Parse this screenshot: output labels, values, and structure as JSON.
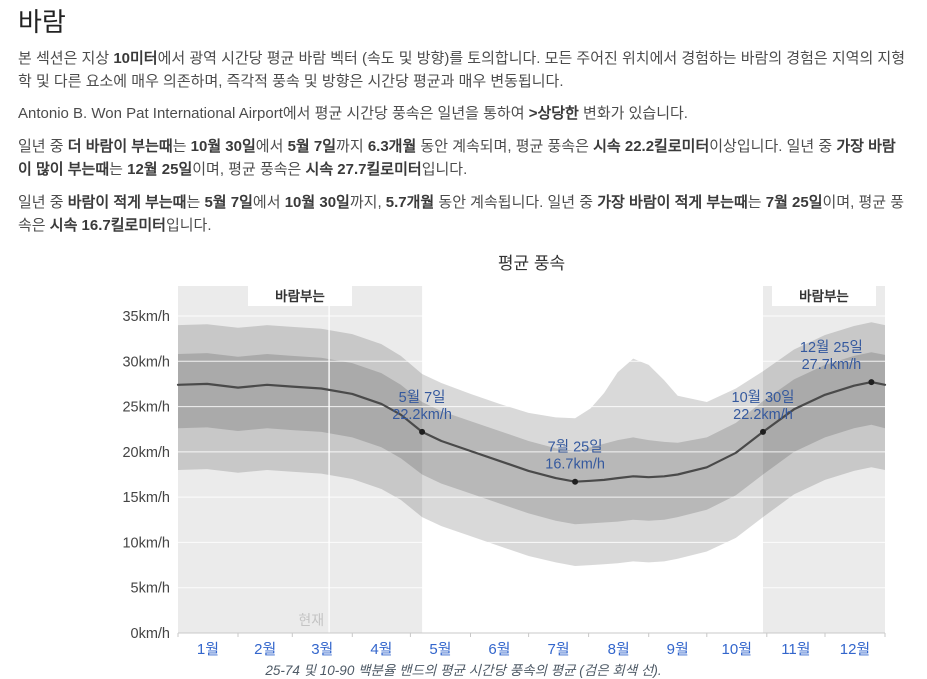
{
  "page": {
    "title": "바람",
    "paragraphs": [
      {
        "segments": [
          {
            "t": "본 섹션은 지상 ",
            "b": false
          },
          {
            "t": "10미터",
            "b": true
          },
          {
            "t": "에서 광역 시간당 평균 바람 벡터 (속도 및 방향)를 토의합니다. 모든 주어진 위치에서 경험하는 바람의 경험은 지역의 지형학 및 다른 요소에 매우 의존하며, 즉각적 풍속 및 방향은 시간당 평균과 매우 변동됩니다.",
            "b": false
          }
        ]
      },
      {
        "segments": [
          {
            "t": "Antonio B. Won Pat International Airport에서 평균 시간당 풍속은 일년을 통하여 ",
            "b": false
          },
          {
            "t": ">상당한",
            "b": true
          },
          {
            "t": " 변화가 있습니다.",
            "b": false
          }
        ]
      },
      {
        "segments": [
          {
            "t": "일년 중 ",
            "b": false
          },
          {
            "t": "더 바람이 부는때",
            "b": true
          },
          {
            "t": "는 ",
            "b": false
          },
          {
            "t": "10월 30일",
            "b": true
          },
          {
            "t": "에서 ",
            "b": false
          },
          {
            "t": "5월 7일",
            "b": true
          },
          {
            "t": "까지 ",
            "b": false
          },
          {
            "t": "6.3개월",
            "b": true
          },
          {
            "t": " 동안 계속되며, 평균 풍속은 ",
            "b": false
          },
          {
            "t": "시속 22.2킬로미터",
            "b": true
          },
          {
            "t": "이상입니다. 일년 중 ",
            "b": false
          },
          {
            "t": "가장 바람이 많이 부는때",
            "b": true
          },
          {
            "t": "는 ",
            "b": false
          },
          {
            "t": "12월 25일",
            "b": true
          },
          {
            "t": "이며, 평균 풍속은 ",
            "b": false
          },
          {
            "t": "시속 27.7킬로미터",
            "b": true
          },
          {
            "t": "입니다.",
            "b": false
          }
        ]
      },
      {
        "segments": [
          {
            "t": "일년 중 ",
            "b": false
          },
          {
            "t": "바람이 적게 부는때",
            "b": true
          },
          {
            "t": "는 ",
            "b": false
          },
          {
            "t": "5월 7일",
            "b": true
          },
          {
            "t": "에서 ",
            "b": false
          },
          {
            "t": "10월 30일",
            "b": true
          },
          {
            "t": "까지, ",
            "b": false
          },
          {
            "t": "5.7개월",
            "b": true
          },
          {
            "t": " 동안 계속됩니다. 일년 중 ",
            "b": false
          },
          {
            "t": "가장 바람이 적게 부는때",
            "b": true
          },
          {
            "t": "는 ",
            "b": false
          },
          {
            "t": "7월 25일",
            "b": true
          },
          {
            "t": "이며, 평균 풍속은 ",
            "b": false
          },
          {
            "t": "시속 16.7킬로미터",
            "b": true
          },
          {
            "t": "입니다.",
            "b": false
          }
        ]
      }
    ]
  },
  "chart_data": {
    "type": "line",
    "title": "평균 풍속",
    "caption": "25-74 및 10-90 백분율 밴드의 평균 시간당 풍속의 평균 (검은 회색 선).",
    "ylabel": "km/h",
    "ylim": [
      0,
      35
    ],
    "yticks": [
      0,
      5,
      10,
      15,
      20,
      25,
      30,
      35
    ],
    "ytick_labels": [
      "0km/h",
      "5km/h",
      "10km/h",
      "15km/h",
      "20km/h",
      "25km/h",
      "30km/h",
      "35km/h"
    ],
    "x_months": [
      "1월",
      "2월",
      "3월",
      "4월",
      "5월",
      "6월",
      "7월",
      "8월",
      "9월",
      "10월",
      "11월",
      "12월"
    ],
    "month_start_days": [
      0,
      31,
      59,
      90,
      120,
      151,
      181,
      212,
      243,
      273,
      304,
      334,
      365
    ],
    "days": [
      0,
      15,
      31,
      46,
      59,
      74,
      90,
      105,
      115,
      126,
      136,
      151,
      166,
      181,
      195,
      205,
      213,
      220,
      227,
      235,
      243,
      251,
      258,
      273,
      288,
      302,
      318,
      334,
      349,
      358,
      365
    ],
    "series": [
      {
        "name": "평균 풍속 (평균)",
        "values": [
          27.4,
          27.5,
          27.1,
          27.4,
          27.2,
          27.0,
          26.4,
          25.3,
          24.1,
          22.2,
          21.2,
          20.1,
          19.0,
          17.9,
          17.1,
          16.7,
          16.8,
          16.9,
          17.1,
          17.3,
          17.2,
          17.3,
          17.5,
          18.3,
          19.9,
          22.2,
          24.7,
          26.3,
          27.3,
          27.7,
          27.4
        ]
      },
      {
        "name": "75 백분위",
        "values": [
          30.8,
          30.9,
          30.5,
          30.8,
          30.6,
          30.4,
          29.8,
          28.7,
          27.4,
          25.5,
          24.5,
          23.4,
          22.3,
          21.2,
          20.4,
          20.1,
          20.5,
          20.9,
          21.3,
          21.6,
          21.3,
          21.1,
          21.0,
          21.6,
          23.2,
          25.6,
          28.0,
          29.6,
          30.6,
          31.0,
          30.7
        ]
      },
      {
        "name": "25 백분위",
        "values": [
          22.6,
          22.7,
          22.3,
          22.6,
          22.4,
          22.2,
          21.6,
          20.5,
          19.3,
          17.5,
          16.5,
          15.4,
          14.3,
          13.2,
          12.4,
          12.0,
          12.1,
          12.2,
          12.3,
          12.5,
          12.4,
          12.5,
          12.8,
          13.6,
          15.2,
          17.5,
          20.0,
          21.6,
          22.6,
          23.0,
          22.6
        ]
      },
      {
        "name": "90 백분위",
        "values": [
          34.0,
          34.1,
          33.7,
          34.0,
          33.8,
          33.6,
          33.0,
          31.9,
          30.6,
          28.6,
          27.6,
          26.4,
          25.3,
          24.3,
          23.8,
          23.7,
          24.8,
          26.5,
          28.8,
          30.3,
          29.6,
          27.9,
          26.2,
          25.5,
          27.0,
          28.9,
          31.3,
          32.9,
          33.9,
          34.3,
          34.0
        ]
      },
      {
        "name": "10 백분위",
        "values": [
          18.0,
          18.1,
          17.7,
          18.0,
          17.8,
          17.6,
          17.0,
          15.9,
          14.7,
          12.8,
          11.8,
          10.7,
          9.6,
          8.5,
          7.8,
          7.4,
          7.5,
          7.6,
          7.7,
          7.9,
          7.8,
          7.9,
          8.2,
          9.0,
          10.5,
          12.8,
          15.3,
          16.9,
          17.9,
          18.3,
          18.0
        ]
      }
    ],
    "seasons": [
      {
        "label": "바람부는",
        "start_day": 0,
        "end_day": 126
      },
      {
        "label": "바람부는",
        "start_day": 302,
        "end_day": 365
      }
    ],
    "now_day": 78,
    "now_label": "현재",
    "annotations": [
      {
        "day": 126,
        "value": 22.2,
        "line1": "5월 7일",
        "line2": "22.2km/h",
        "dx": 0
      },
      {
        "day": 205,
        "value": 16.7,
        "line1": "7월 25일",
        "line2": "16.7km/h",
        "dx": 0
      },
      {
        "day": 302,
        "value": 22.2,
        "line1": "10월 30일",
        "line2": "22.2km/h",
        "dx": 0
      },
      {
        "day": 358,
        "value": 27.7,
        "line1": "12월 25일",
        "line2": "27.7km/h",
        "dx": -40
      }
    ],
    "colors": {
      "season_band": "#ebebeb",
      "band": "rgba(0,0,0,0.15)",
      "mean_line": "#4a4a4a",
      "dot": "#1f1f1f",
      "annotation": "#35599e",
      "axis_month": "#3366cc",
      "axis_y": "#444444",
      "season_label": "#333333",
      "now": "#c4c4c4",
      "grid": "rgba(255,255,255,0.85)",
      "axis_line": "#c8c8c8"
    }
  }
}
